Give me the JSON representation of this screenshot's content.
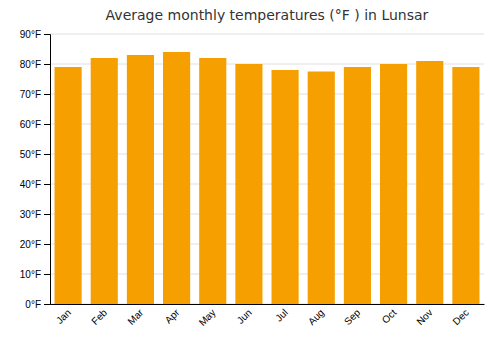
{
  "chart_data": {
    "type": "bar",
    "title": "Average monthly temperatures (°F ) in Lunsar",
    "categories": [
      "Jan",
      "Feb",
      "Mar",
      "Apr",
      "May",
      "Jun",
      "Jul",
      "Aug",
      "Sep",
      "Oct",
      "Nov",
      "Dec"
    ],
    "values": [
      79,
      82,
      83,
      84,
      82,
      80,
      78,
      77.5,
      79,
      80,
      81,
      79
    ],
    "color": "#F5A000",
    "ylim": [
      0,
      90
    ],
    "yticks": [
      {
        "value": 0,
        "label": "0°F"
      },
      {
        "value": 10,
        "label": "10°F"
      },
      {
        "value": 20,
        "label": "20°F"
      },
      {
        "value": 30,
        "label": "30°F"
      },
      {
        "value": 40,
        "label": "40°F"
      },
      {
        "value": 50,
        "label": "50°F"
      },
      {
        "value": 60,
        "label": "60°F"
      },
      {
        "value": 70,
        "label": "70°F"
      },
      {
        "value": 80,
        "label": "80°F"
      },
      {
        "value": 90,
        "label": "90°F"
      }
    ],
    "grid": true
  }
}
